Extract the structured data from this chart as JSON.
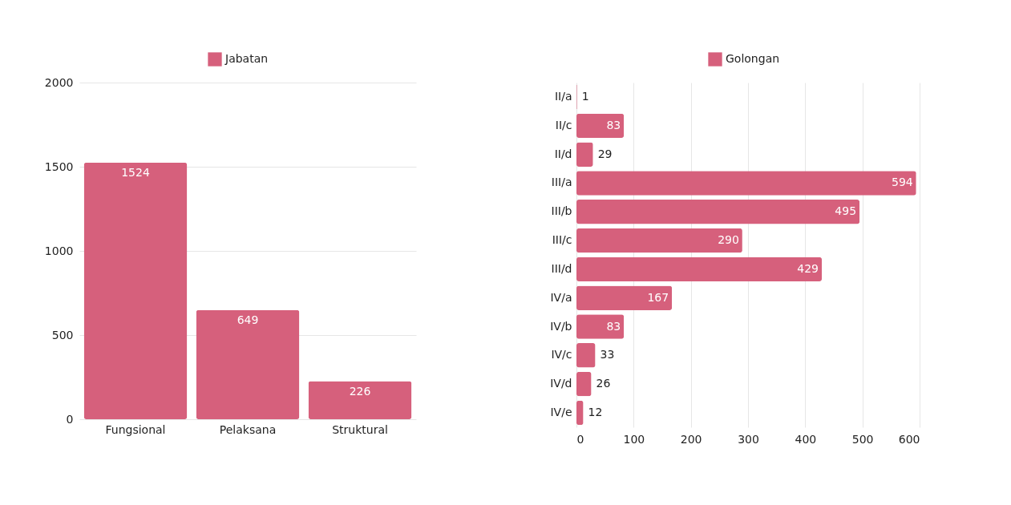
{
  "chart_data": [
    {
      "type": "bar",
      "categories": [
        "Fungsional",
        "Pelaksana",
        "Struktural"
      ],
      "series": [
        {
          "name": "Jabatan",
          "color": "#d6607c",
          "values": [
            1524,
            649,
            226
          ]
        }
      ],
      "ylim": [
        0,
        2000
      ],
      "yticks": [
        0,
        500,
        1000,
        1500,
        2000
      ],
      "grid": "y",
      "legend": "top",
      "data_labels": true
    },
    {
      "type": "bar",
      "orientation": "horizontal",
      "categories": [
        "II/a",
        "II/c",
        "II/d",
        "III/a",
        "III/b",
        "III/c",
        "III/d",
        "IV/a",
        "IV/b",
        "IV/c",
        "IV/d",
        "IV/e"
      ],
      "series": [
        {
          "name": "Golongan",
          "color": "#d6607c",
          "values": [
            1,
            83,
            29,
            594,
            495,
            290,
            429,
            167,
            83,
            33,
            26,
            12
          ]
        }
      ],
      "xlim": [
        0,
        600
      ],
      "xticks": [
        0,
        100,
        200,
        300,
        400,
        500,
        600
      ],
      "grid": "x",
      "legend": "top",
      "data_labels": true
    }
  ]
}
